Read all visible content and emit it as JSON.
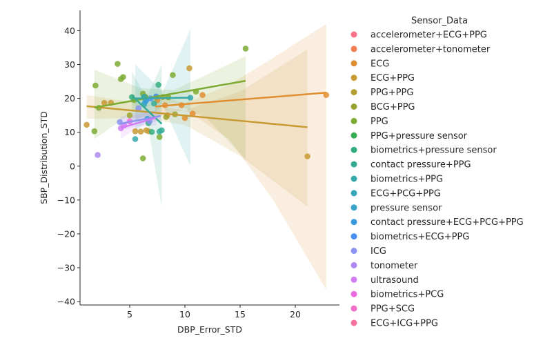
{
  "chart_data": {
    "type": "scatter",
    "xlabel": "DBP_Error_STD",
    "ylabel": "SBP_Distribution_STD",
    "xlim": [
      0.5,
      24.0
    ],
    "ylim": [
      -41,
      46
    ],
    "xticks": [
      5,
      10,
      15,
      20
    ],
    "yticks": [
      -40,
      -30,
      -20,
      -10,
      0,
      10,
      20,
      30,
      40
    ],
    "grid": false,
    "legend_title": "Sensor_Data",
    "legend_position": "right",
    "series": [
      {
        "name": "accelerometer+ECG+PPG",
        "color": "#f77189",
        "points": []
      },
      {
        "name": "accelerometer+tonometer",
        "color": "#f27d52",
        "points": []
      },
      {
        "name": "ECG",
        "color": "#e08e32",
        "points": [
          [
            22.8,
            21
          ],
          [
            11.6,
            21
          ],
          [
            9.7,
            18
          ],
          [
            10.7,
            15.5
          ],
          [
            8.4,
            15
          ],
          [
            10.0,
            14.2
          ],
          [
            7.5,
            19.5
          ],
          [
            8.2,
            18
          ]
        ],
        "fit": {
          "x": [
            7.3,
            22.8
          ],
          "y": [
            17.6,
            21.7
          ]
        },
        "band": {
          "upper": [
            [
              7.3,
              21
            ],
            [
              10,
              18.6
            ],
            [
              14,
              24
            ],
            [
              18,
              32
            ],
            [
              22.8,
              42
            ]
          ],
          "lower": [
            [
              7.3,
              14.5
            ],
            [
              10,
              16.6
            ],
            [
              14,
              8
            ],
            [
              18,
              -10
            ],
            [
              22.8,
              -36.5
            ]
          ]
        }
      },
      {
        "name": "ECG+PPG",
        "color": "#c99a33",
        "points": [
          [
            1.1,
            12.2
          ],
          [
            2.7,
            18.7
          ],
          [
            3.3,
            18.7
          ],
          [
            5.5,
            10.3
          ],
          [
            6.0,
            10.2
          ],
          [
            6.5,
            10.6
          ],
          [
            6.7,
            10.3
          ],
          [
            10.4,
            28.9
          ],
          [
            21.1,
            2.9
          ]
        ],
        "fit": {
          "x": [
            1.1,
            21.1
          ],
          "y": [
            17.7,
            11.5
          ]
        },
        "band": {
          "upper": [
            [
              1.1,
              21
            ],
            [
              6,
              18.5
            ],
            [
              10,
              16.5
            ],
            [
              15,
              22
            ],
            [
              21.1,
              34.5
            ]
          ],
          "lower": [
            [
              1.1,
              14
            ],
            [
              6,
              14.2
            ],
            [
              10,
              12.2
            ],
            [
              15,
              3
            ],
            [
              21.1,
              -12
            ]
          ]
        }
      },
      {
        "name": "PPG+PPG",
        "color": "#b1a031",
        "points": []
      },
      {
        "name": "BCG+PPG",
        "color": "#9ba431",
        "points": [
          [
            5.0,
            15.0
          ],
          [
            6.5,
            20.0
          ],
          [
            9.1,
            15.3
          ],
          [
            8.3,
            14.5
          ],
          [
            8.0,
            20.4
          ]
        ]
      },
      {
        "name": "PPG",
        "color": "#7dab31",
        "points": [
          [
            1.8,
            10.3
          ],
          [
            1.9,
            23.8
          ],
          [
            2.2,
            17.2
          ],
          [
            3.9,
            30.2
          ],
          [
            4.2,
            25.7
          ],
          [
            4.4,
            26.3
          ],
          [
            5.4,
            19.5
          ],
          [
            6.2,
            21.4
          ],
          [
            6.4,
            20.5
          ],
          [
            7.4,
            20.4
          ],
          [
            7.7,
            8.6
          ],
          [
            8.5,
            20.3
          ],
          [
            8.9,
            26.9
          ],
          [
            11.0,
            22.0
          ],
          [
            15.5,
            34.7
          ],
          [
            6.2,
            2.3
          ]
        ],
        "fit": {
          "x": [
            1.8,
            15.5
          ],
          "y": [
            17.3,
            25.2
          ]
        },
        "band": {
          "upper": [
            [
              1.8,
              28.5
            ],
            [
              6,
              23
            ],
            [
              9,
              22.5
            ],
            [
              12,
              27
            ],
            [
              15.5,
              32.5
            ]
          ],
          "lower": [
            [
              1.8,
              8
            ],
            [
              6,
              17.5
            ],
            [
              9,
              18.7
            ],
            [
              12,
              14
            ],
            [
              15.5,
              2
            ]
          ]
        }
      },
      {
        "name": "PPG+pressure sensor",
        "color": "#36ad55",
        "points": []
      },
      {
        "name": "biometrics+pressure sensor",
        "color": "#34ae7e",
        "points": [
          [
            5.2,
            20.4
          ],
          [
            6.7,
            12.7
          ],
          [
            7.0,
            10.1
          ],
          [
            7.6,
            24.0
          ]
        ]
      },
      {
        "name": "contact pressure+PPG",
        "color": "#35ab95",
        "points": [
          [
            7.7,
            10.2
          ],
          [
            7.9,
            10.6
          ],
          [
            7.2,
            18.5
          ]
        ],
        "fit": {
          "x": [
            5.2,
            7.9
          ],
          "y": [
            20.8,
            12.5
          ]
        },
        "band": {
          "upper": [
            [
              5.2,
              28
            ],
            [
              6.5,
              20
            ],
            [
              7.9,
              30
            ]
          ],
          "lower": [
            [
              5.2,
              13
            ],
            [
              6.5,
              15
            ],
            [
              7.9,
              -12
            ]
          ]
        }
      },
      {
        "name": "biometrics+PPG",
        "color": "#36a9a9",
        "points": [
          [
            5.5,
            8.0
          ],
          [
            10.5,
            20.2
          ],
          [
            6.3,
            20.5
          ]
        ],
        "fit": {
          "x": [
            5.5,
            10.5
          ],
          "y": [
            20.0,
            20.2
          ]
        },
        "band": {
          "upper": [
            [
              5.5,
              30
            ],
            [
              8,
              22
            ],
            [
              10.5,
              40.5
            ]
          ],
          "lower": [
            [
              5.5,
              10
            ],
            [
              8,
              18
            ],
            [
              10.5,
              0
            ]
          ]
        }
      },
      {
        "name": "ECG+PCG+PPG",
        "color": "#37a6ba",
        "points": [
          [
            6.3,
            18.2
          ]
        ]
      },
      {
        "name": "pressure sensor",
        "color": "#39a2ca",
        "points": [
          [
            6.4,
            19.0
          ],
          [
            6.6,
            14.0
          ]
        ]
      },
      {
        "name": "contact pressure+ECG+PCG+PPG",
        "color": "#3a9cdf",
        "points": [
          [
            6.5,
            19.4
          ]
        ]
      },
      {
        "name": "biometrics+ECG+PPG",
        "color": "#4a8ff5",
        "points": [
          [
            6.9,
            20.0
          ],
          [
            7.4,
            20.6
          ]
        ]
      },
      {
        "name": "ICG",
        "color": "#8a93f0",
        "points": [
          [
            4.1,
            13.0
          ],
          [
            5.8,
            17.1
          ],
          [
            6.8,
            13.2
          ]
        ],
        "fit": {
          "x": [
            4.1,
            7.8
          ],
          "y": [
            12.5,
            14.8
          ]
        },
        "band": {
          "upper": [
            [
              4.1,
              14.5
            ],
            [
              6,
              16.5
            ],
            [
              7.8,
              16
            ]
          ],
          "lower": [
            [
              4.1,
              10.5
            ],
            [
              6,
              12
            ],
            [
              7.8,
              13.5
            ]
          ]
        }
      },
      {
        "name": "tonometer",
        "color": "#af88f2",
        "points": [
          [
            2.1,
            3.3
          ]
        ]
      },
      {
        "name": "ultrasound",
        "color": "#d27cf3",
        "points": [
          [
            4.2,
            11.2
          ],
          [
            4.5,
            12.0
          ]
        ],
        "fit": {
          "x": [
            4.2,
            7.4
          ],
          "y": [
            11.3,
            14.3
          ]
        },
        "band": {
          "upper": [
            [
              4.2,
              14
            ],
            [
              5.8,
              15.3
            ],
            [
              7.4,
              16.5
            ]
          ],
          "lower": [
            [
              4.2,
              8
            ],
            [
              5.8,
              11.6
            ],
            [
              7.4,
              12
            ]
          ]
        }
      },
      {
        "name": "biometrics+PCG",
        "color": "#ec6cdf",
        "points": [
          [
            5.0,
            13.2
          ]
        ]
      },
      {
        "name": "PPG+SCG",
        "color": "#f36ec5",
        "points": []
      },
      {
        "name": "ECG+ICG+PPG",
        "color": "#f5709f",
        "points": []
      }
    ]
  }
}
